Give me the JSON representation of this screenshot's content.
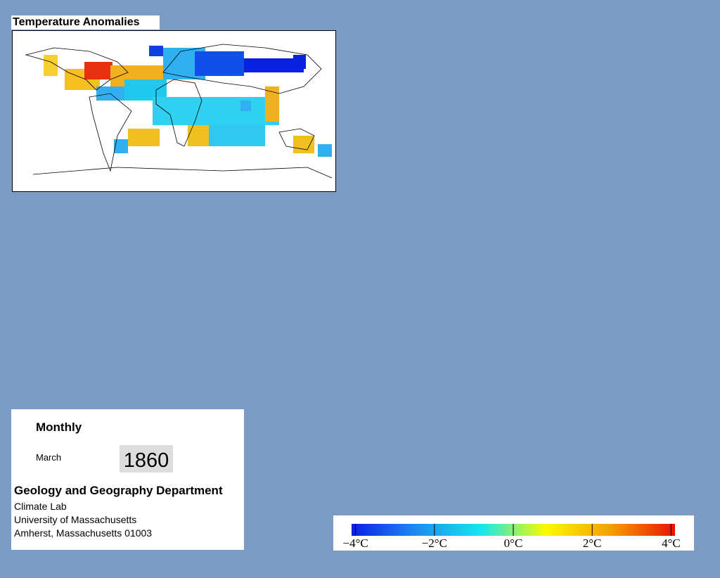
{
  "title": "Temperature Anomalies",
  "panel": {
    "period": "Monthly",
    "month": "March",
    "year": "1860",
    "department": "Geology and Geography Department",
    "lab": "Climate Lab",
    "university": "University of Massachusetts",
    "address": "Amherst, Massachusetts 01003"
  },
  "colorbar": {
    "lim": [
      -4.1,
      4.1
    ],
    "colors": [
      "#0a1ee6",
      "#1e8cf0",
      "#14e6f0",
      "#fafa00",
      "#f5a000",
      "#e61400"
    ],
    "ticks": [
      {
        "value": -4,
        "label": "−4°C"
      },
      {
        "value": -2,
        "label": "−2°C"
      },
      {
        "value": 0,
        "label": "0°C"
      },
      {
        "value": 2,
        "label": "2°C"
      },
      {
        "value": 4,
        "label": "4°C"
      }
    ]
  }
}
